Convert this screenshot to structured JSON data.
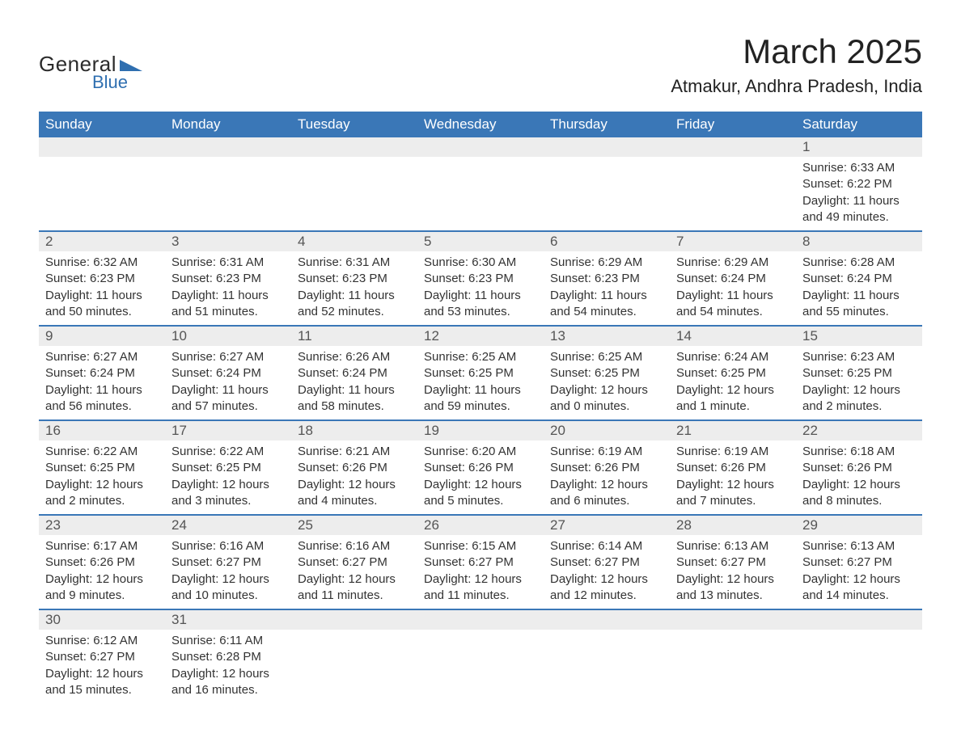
{
  "logo": {
    "text1": "General",
    "text2": "Blue",
    "triangle_color": "#2f6fb0"
  },
  "title": "March 2025",
  "location": "Atmakur, Andhra Pradesh, India",
  "colors": {
    "header_bg": "#3a77b7",
    "header_text": "#ffffff",
    "daynum_bg": "#ededed",
    "row_divider": "#3a77b7",
    "body_text": "#333333",
    "background": "#ffffff"
  },
  "typography": {
    "title_fontsize": 42,
    "location_fontsize": 22,
    "weekday_fontsize": 17,
    "daynum_fontsize": 17,
    "body_fontsize": 15
  },
  "weekdays": [
    "Sunday",
    "Monday",
    "Tuesday",
    "Wednesday",
    "Thursday",
    "Friday",
    "Saturday"
  ],
  "weeks": [
    [
      null,
      null,
      null,
      null,
      null,
      null,
      {
        "n": "1",
        "sr": "Sunrise: 6:33 AM",
        "ss": "Sunset: 6:22 PM",
        "d1": "Daylight: 11 hours",
        "d2": "and 49 minutes."
      }
    ],
    [
      {
        "n": "2",
        "sr": "Sunrise: 6:32 AM",
        "ss": "Sunset: 6:23 PM",
        "d1": "Daylight: 11 hours",
        "d2": "and 50 minutes."
      },
      {
        "n": "3",
        "sr": "Sunrise: 6:31 AM",
        "ss": "Sunset: 6:23 PM",
        "d1": "Daylight: 11 hours",
        "d2": "and 51 minutes."
      },
      {
        "n": "4",
        "sr": "Sunrise: 6:31 AM",
        "ss": "Sunset: 6:23 PM",
        "d1": "Daylight: 11 hours",
        "d2": "and 52 minutes."
      },
      {
        "n": "5",
        "sr": "Sunrise: 6:30 AM",
        "ss": "Sunset: 6:23 PM",
        "d1": "Daylight: 11 hours",
        "d2": "and 53 minutes."
      },
      {
        "n": "6",
        "sr": "Sunrise: 6:29 AM",
        "ss": "Sunset: 6:23 PM",
        "d1": "Daylight: 11 hours",
        "d2": "and 54 minutes."
      },
      {
        "n": "7",
        "sr": "Sunrise: 6:29 AM",
        "ss": "Sunset: 6:24 PM",
        "d1": "Daylight: 11 hours",
        "d2": "and 54 minutes."
      },
      {
        "n": "8",
        "sr": "Sunrise: 6:28 AM",
        "ss": "Sunset: 6:24 PM",
        "d1": "Daylight: 11 hours",
        "d2": "and 55 minutes."
      }
    ],
    [
      {
        "n": "9",
        "sr": "Sunrise: 6:27 AM",
        "ss": "Sunset: 6:24 PM",
        "d1": "Daylight: 11 hours",
        "d2": "and 56 minutes."
      },
      {
        "n": "10",
        "sr": "Sunrise: 6:27 AM",
        "ss": "Sunset: 6:24 PM",
        "d1": "Daylight: 11 hours",
        "d2": "and 57 minutes."
      },
      {
        "n": "11",
        "sr": "Sunrise: 6:26 AM",
        "ss": "Sunset: 6:24 PM",
        "d1": "Daylight: 11 hours",
        "d2": "and 58 minutes."
      },
      {
        "n": "12",
        "sr": "Sunrise: 6:25 AM",
        "ss": "Sunset: 6:25 PM",
        "d1": "Daylight: 11 hours",
        "d2": "and 59 minutes."
      },
      {
        "n": "13",
        "sr": "Sunrise: 6:25 AM",
        "ss": "Sunset: 6:25 PM",
        "d1": "Daylight: 12 hours",
        "d2": "and 0 minutes."
      },
      {
        "n": "14",
        "sr": "Sunrise: 6:24 AM",
        "ss": "Sunset: 6:25 PM",
        "d1": "Daylight: 12 hours",
        "d2": "and 1 minute."
      },
      {
        "n": "15",
        "sr": "Sunrise: 6:23 AM",
        "ss": "Sunset: 6:25 PM",
        "d1": "Daylight: 12 hours",
        "d2": "and 2 minutes."
      }
    ],
    [
      {
        "n": "16",
        "sr": "Sunrise: 6:22 AM",
        "ss": "Sunset: 6:25 PM",
        "d1": "Daylight: 12 hours",
        "d2": "and 2 minutes."
      },
      {
        "n": "17",
        "sr": "Sunrise: 6:22 AM",
        "ss": "Sunset: 6:25 PM",
        "d1": "Daylight: 12 hours",
        "d2": "and 3 minutes."
      },
      {
        "n": "18",
        "sr": "Sunrise: 6:21 AM",
        "ss": "Sunset: 6:26 PM",
        "d1": "Daylight: 12 hours",
        "d2": "and 4 minutes."
      },
      {
        "n": "19",
        "sr": "Sunrise: 6:20 AM",
        "ss": "Sunset: 6:26 PM",
        "d1": "Daylight: 12 hours",
        "d2": "and 5 minutes."
      },
      {
        "n": "20",
        "sr": "Sunrise: 6:19 AM",
        "ss": "Sunset: 6:26 PM",
        "d1": "Daylight: 12 hours",
        "d2": "and 6 minutes."
      },
      {
        "n": "21",
        "sr": "Sunrise: 6:19 AM",
        "ss": "Sunset: 6:26 PM",
        "d1": "Daylight: 12 hours",
        "d2": "and 7 minutes."
      },
      {
        "n": "22",
        "sr": "Sunrise: 6:18 AM",
        "ss": "Sunset: 6:26 PM",
        "d1": "Daylight: 12 hours",
        "d2": "and 8 minutes."
      }
    ],
    [
      {
        "n": "23",
        "sr": "Sunrise: 6:17 AM",
        "ss": "Sunset: 6:26 PM",
        "d1": "Daylight: 12 hours",
        "d2": "and 9 minutes."
      },
      {
        "n": "24",
        "sr": "Sunrise: 6:16 AM",
        "ss": "Sunset: 6:27 PM",
        "d1": "Daylight: 12 hours",
        "d2": "and 10 minutes."
      },
      {
        "n": "25",
        "sr": "Sunrise: 6:16 AM",
        "ss": "Sunset: 6:27 PM",
        "d1": "Daylight: 12 hours",
        "d2": "and 11 minutes."
      },
      {
        "n": "26",
        "sr": "Sunrise: 6:15 AM",
        "ss": "Sunset: 6:27 PM",
        "d1": "Daylight: 12 hours",
        "d2": "and 11 minutes."
      },
      {
        "n": "27",
        "sr": "Sunrise: 6:14 AM",
        "ss": "Sunset: 6:27 PM",
        "d1": "Daylight: 12 hours",
        "d2": "and 12 minutes."
      },
      {
        "n": "28",
        "sr": "Sunrise: 6:13 AM",
        "ss": "Sunset: 6:27 PM",
        "d1": "Daylight: 12 hours",
        "d2": "and 13 minutes."
      },
      {
        "n": "29",
        "sr": "Sunrise: 6:13 AM",
        "ss": "Sunset: 6:27 PM",
        "d1": "Daylight: 12 hours",
        "d2": "and 14 minutes."
      }
    ],
    [
      {
        "n": "30",
        "sr": "Sunrise: 6:12 AM",
        "ss": "Sunset: 6:27 PM",
        "d1": "Daylight: 12 hours",
        "d2": "and 15 minutes."
      },
      {
        "n": "31",
        "sr": "Sunrise: 6:11 AM",
        "ss": "Sunset: 6:28 PM",
        "d1": "Daylight: 12 hours",
        "d2": "and 16 minutes."
      },
      null,
      null,
      null,
      null,
      null
    ]
  ]
}
